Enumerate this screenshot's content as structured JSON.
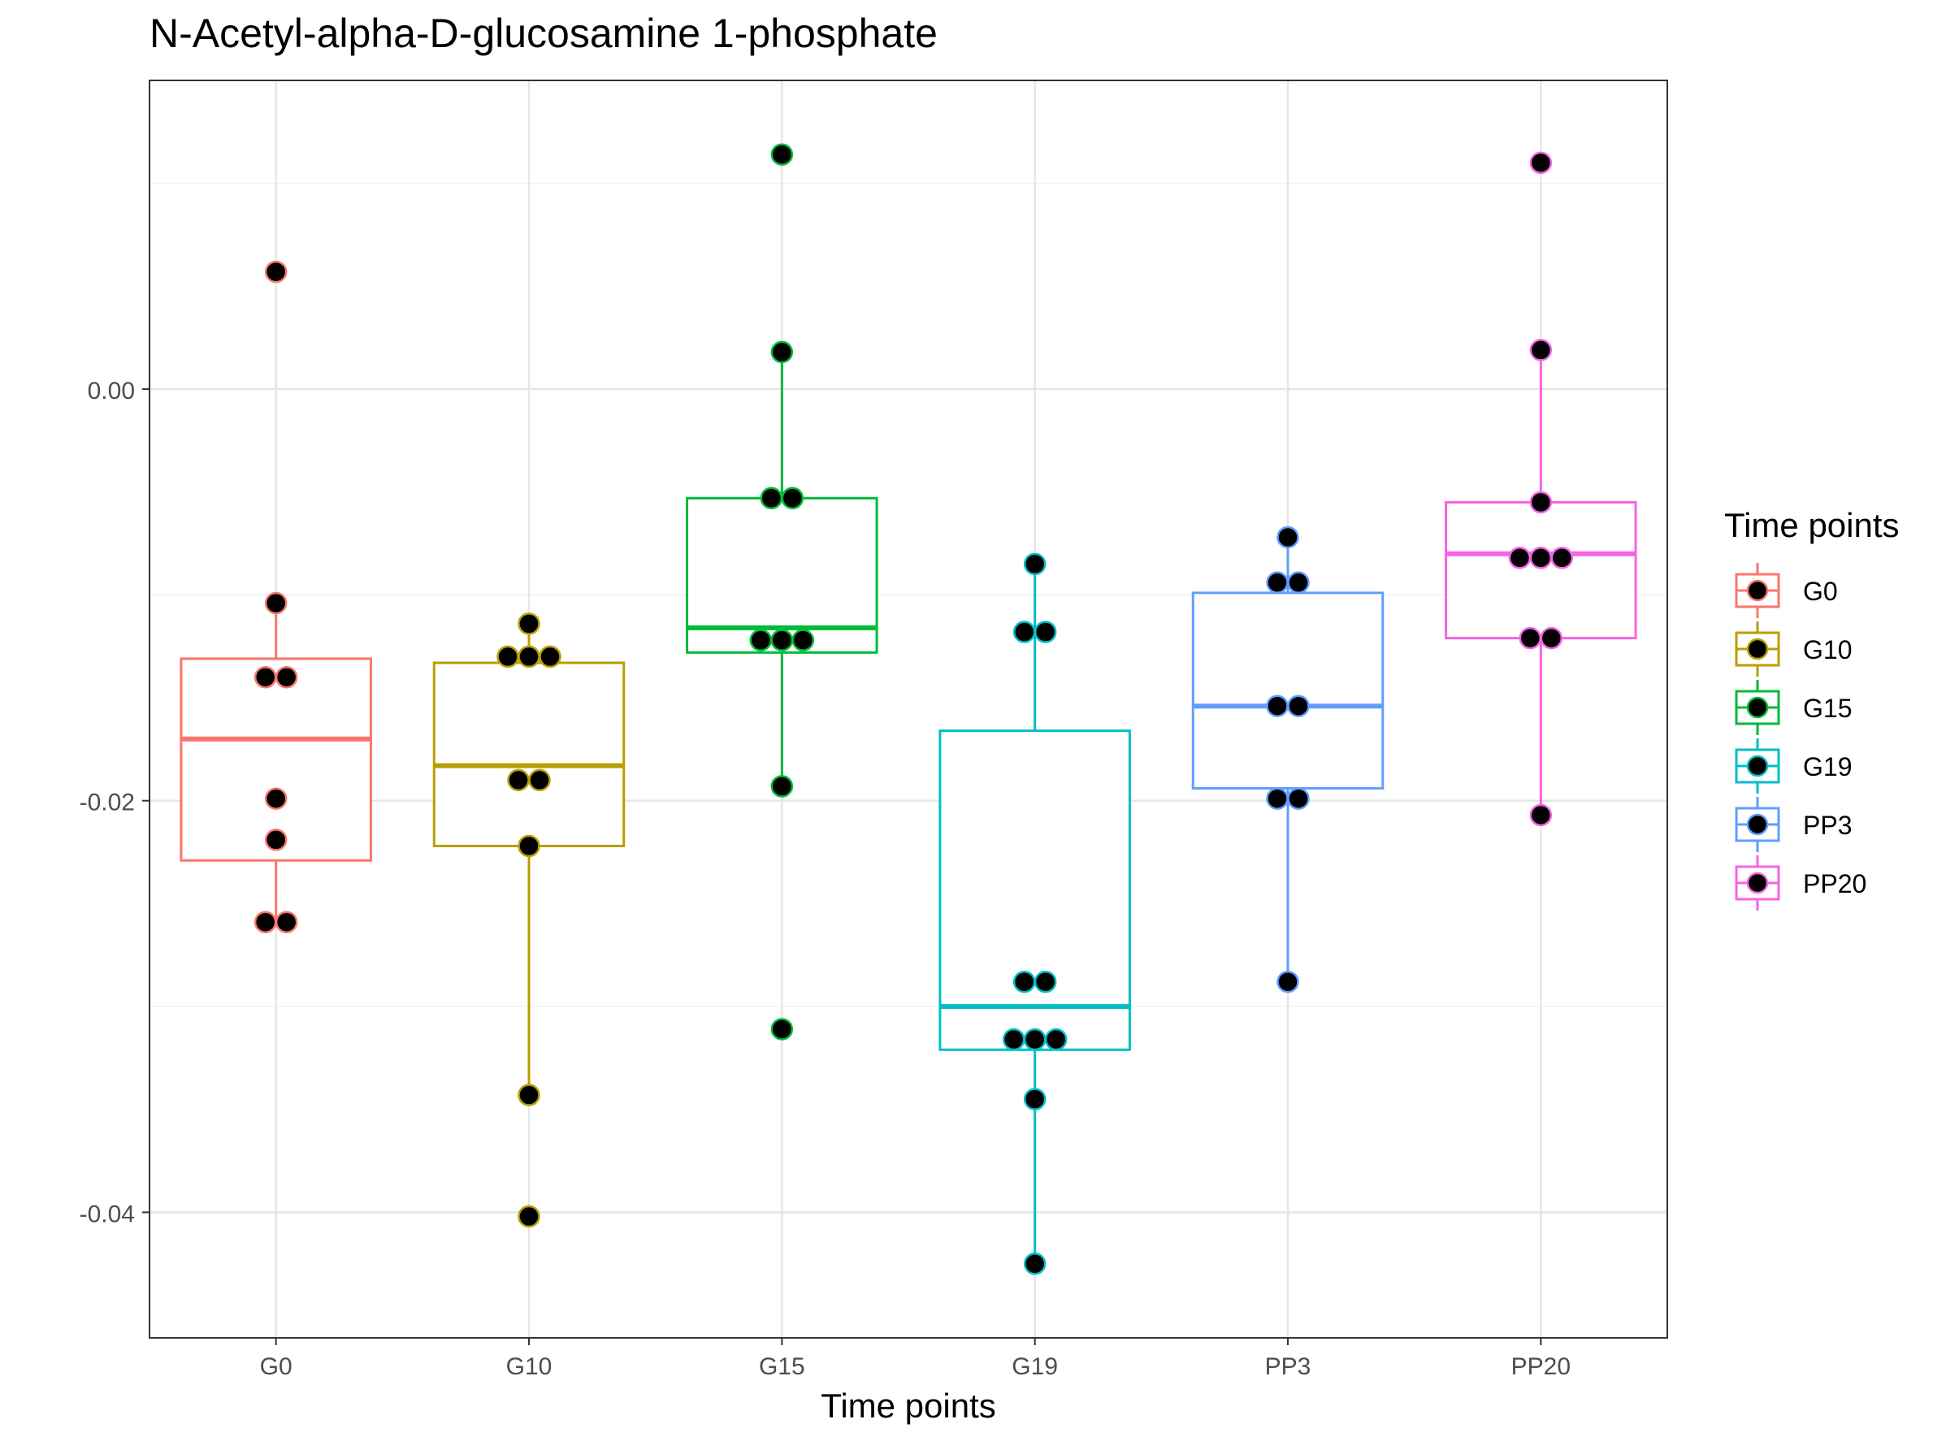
{
  "chart_data": {
    "type": "boxplot",
    "title": "N-Acetyl-alpha-D-glucosamine 1-phosphate",
    "xlabel": "Time points",
    "ylabel": "",
    "ylim": [
      -0.0461,
      0.015
    ],
    "yticks": [
      0.0,
      -0.02,
      -0.04
    ],
    "ytick_labels": [
      "0.00",
      "-0.02",
      "-0.04"
    ],
    "grid": true,
    "legend": {
      "title": "Time points",
      "position": "right"
    },
    "categories": [
      "G0",
      "G10",
      "G15",
      "G19",
      "PP3",
      "PP20"
    ],
    "series": [
      {
        "name": "G0",
        "color": "#F8766D",
        "box": {
          "lower_whisker": -0.0259,
          "q1": -0.0229,
          "median": -0.017,
          "q3": -0.0131,
          "upper_whisker": -0.0104
        },
        "points": [
          0.0057,
          -0.0104,
          -0.014,
          -0.014,
          -0.0199,
          -0.0219,
          -0.0259,
          -0.0259
        ]
      },
      {
        "name": "G10",
        "color": "#B79F00",
        "box": {
          "lower_whisker": -0.0343,
          "q1": -0.0222,
          "median": -0.0183,
          "q3": -0.0133,
          "upper_whisker": -0.0114
        },
        "points": [
          -0.0114,
          -0.013,
          -0.013,
          -0.013,
          -0.019,
          -0.019,
          -0.0222,
          -0.0343,
          -0.0402
        ]
      },
      {
        "name": "G15",
        "color": "#00BA38",
        "box": {
          "lower_whisker": -0.0193,
          "q1": -0.0128,
          "median": -0.0116,
          "q3": -0.0053,
          "upper_whisker": 0.0018
        },
        "points": [
          0.0114,
          0.0018,
          -0.0053,
          -0.0053,
          -0.0122,
          -0.0122,
          -0.0122,
          -0.0193,
          -0.0311
        ]
      },
      {
        "name": "G19",
        "color": "#00BFC4",
        "box": {
          "lower_whisker": -0.0425,
          "q1": -0.0321,
          "median": -0.03,
          "q3": -0.0166,
          "upper_whisker": -0.0085
        },
        "points": [
          -0.0085,
          -0.0118,
          -0.0118,
          -0.0288,
          -0.0288,
          -0.0316,
          -0.0316,
          -0.0316,
          -0.0345,
          -0.0425
        ]
      },
      {
        "name": "PP3",
        "color": "#619CFF",
        "box": {
          "lower_whisker": -0.0288,
          "q1": -0.0194,
          "median": -0.0154,
          "q3": -0.0099,
          "upper_whisker": -0.0072
        },
        "points": [
          -0.0072,
          -0.0094,
          -0.0094,
          -0.0154,
          -0.0154,
          -0.0199,
          -0.0199,
          -0.0288
        ]
      },
      {
        "name": "PP20",
        "color": "#F564E3",
        "box": {
          "lower_whisker": -0.0207,
          "q1": -0.0121,
          "median": -0.008,
          "q3": -0.0055,
          "upper_whisker": 0.0019
        },
        "points": [
          0.011,
          0.0019,
          -0.0055,
          -0.0082,
          -0.0082,
          -0.0082,
          -0.0121,
          -0.0121,
          -0.0207
        ]
      }
    ]
  }
}
